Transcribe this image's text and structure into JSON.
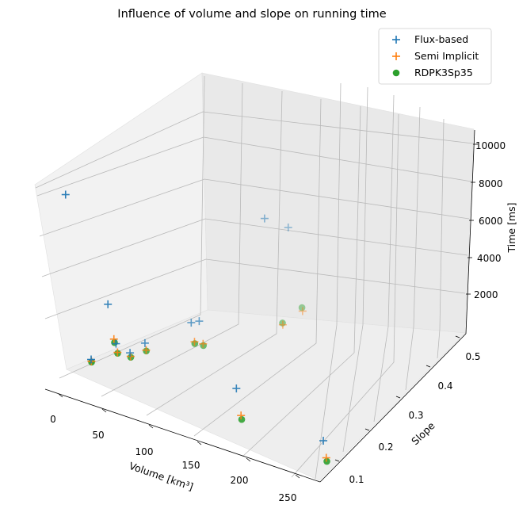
{
  "chart_data": {
    "type": "scatter3d",
    "title": "Influence of volume and slope on running time",
    "xlabel": "Volume  [km³]",
    "ylabel": "Slope",
    "zlabel": "Time [ms]",
    "x_ticks": [
      "0",
      "50",
      "100",
      "150",
      "200",
      "250"
    ],
    "y_ticks": [
      "0.1",
      "0.2",
      "0.3",
      "0.4",
      "0.5"
    ],
    "z_ticks": [
      "2000",
      "4000",
      "6000",
      "8000",
      "10000"
    ],
    "grid": true,
    "legend_position": "top-right",
    "colors": {
      "flux": "#1f77b4",
      "semi": "#ff7f0e",
      "rdpk": "#2ca02c"
    },
    "series": [
      {
        "name": "Flux-based",
        "marker": "plus",
        "color": "#1f77b4",
        "points": [
          {
            "volume": 5,
            "slope": 0.05,
            "time": 600
          },
          {
            "volume": 5,
            "slope": 0.06,
            "time": 10000
          },
          {
            "volume": 20,
            "slope": 0.1,
            "time": 3800
          },
          {
            "volume": 15,
            "slope": 0.12,
            "time": 1300
          },
          {
            "volume": 20,
            "slope": 0.15,
            "time": 700
          },
          {
            "volume": 30,
            "slope": 0.18,
            "time": 1300
          },
          {
            "volume": 60,
            "slope": 0.27,
            "time": 2600
          },
          {
            "volume": 60,
            "slope": 0.3,
            "time": 2500
          },
          {
            "volume": 120,
            "slope": 0.5,
            "time": 8000
          },
          {
            "volume": 110,
            "slope": 0.45,
            "time": 8600
          },
          {
            "volume": 150,
            "slope": 0.12,
            "time": 1800
          },
          {
            "volume": 250,
            "slope": 0.1,
            "time": 1200
          }
        ]
      },
      {
        "name": "Semi Implicit",
        "marker": "plus",
        "color": "#ff7f0e",
        "points": [
          {
            "volume": 5,
            "slope": 0.05,
            "time": 500
          },
          {
            "volume": 20,
            "slope": 0.1,
            "time": 1800
          },
          {
            "volume": 15,
            "slope": 0.12,
            "time": 800
          },
          {
            "volume": 20,
            "slope": 0.15,
            "time": 500
          },
          {
            "volume": 30,
            "slope": 0.18,
            "time": 900
          },
          {
            "volume": 60,
            "slope": 0.27,
            "time": 1500
          },
          {
            "volume": 60,
            "slope": 0.3,
            "time": 1200
          },
          {
            "volume": 120,
            "slope": 0.5,
            "time": 3200
          },
          {
            "volume": 110,
            "slope": 0.45,
            "time": 2500
          },
          {
            "volume": 150,
            "slope": 0.12,
            "time": 250
          },
          {
            "volume": 250,
            "slope": 0.1,
            "time": 220
          }
        ]
      },
      {
        "name": "RDPK3Sp35",
        "marker": "circle",
        "color": "#2ca02c",
        "points": [
          {
            "volume": 5,
            "slope": 0.05,
            "time": 450
          },
          {
            "volume": 20,
            "slope": 0.1,
            "time": 1600
          },
          {
            "volume": 15,
            "slope": 0.12,
            "time": 750
          },
          {
            "volume": 20,
            "slope": 0.15,
            "time": 450
          },
          {
            "volume": 30,
            "slope": 0.18,
            "time": 850
          },
          {
            "volume": 60,
            "slope": 0.27,
            "time": 1400
          },
          {
            "volume": 60,
            "slope": 0.3,
            "time": 1100
          },
          {
            "volume": 120,
            "slope": 0.5,
            "time": 3400
          },
          {
            "volume": 110,
            "slope": 0.45,
            "time": 2600
          },
          {
            "volume": 150,
            "slope": 0.12,
            "time": 20
          },
          {
            "volume": 250,
            "slope": 0.1,
            "time": 15
          }
        ]
      }
    ]
  }
}
